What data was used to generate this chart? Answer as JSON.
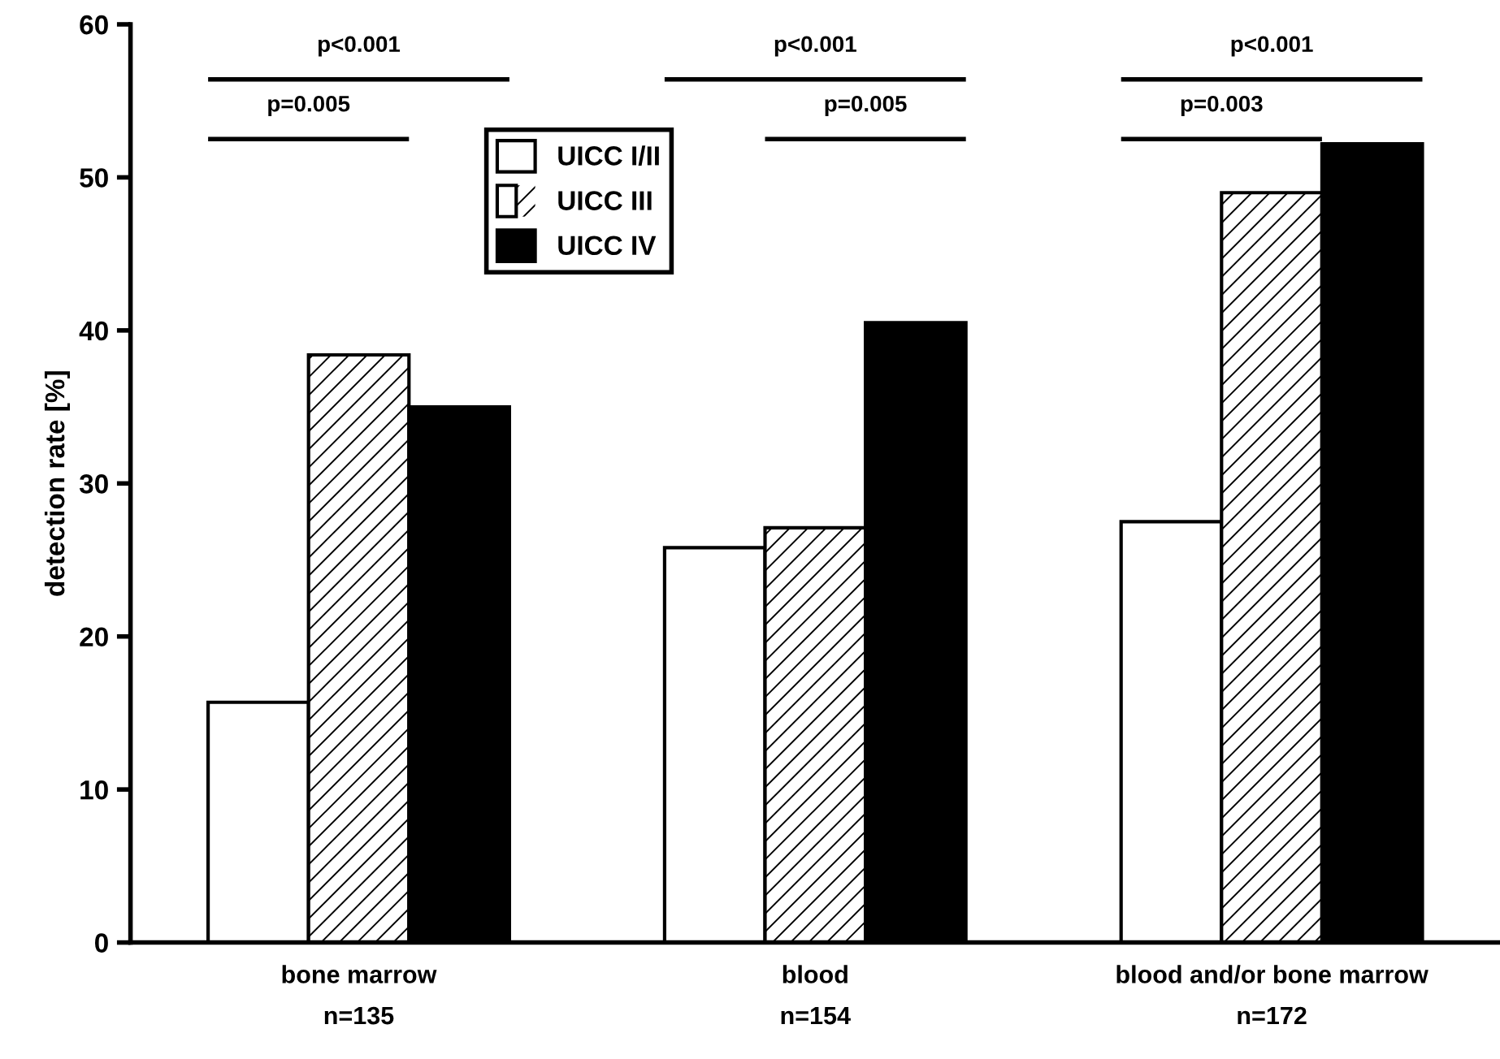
{
  "chart_data": {
    "type": "bar",
    "ylabel": "detection rate [%]",
    "categories": [
      "bone marrow\nn=135",
      "blood\nn=154",
      "blood and/or bone marrow\nn=172"
    ],
    "series": [
      {
        "name": "UICC I/II",
        "color": "#ffffff",
        "values": [
          15.7,
          25.8,
          27.5
        ]
      },
      {
        "name": "UICC III",
        "color": "#ffffff",
        "values": [
          38.4,
          27.1,
          49.0
        ]
      },
      {
        "name": "UICC IV",
        "color": "#000000",
        "values": [
          35.0,
          40.5,
          52.2
        ]
      }
    ],
    "ylim": [
      0,
      60
    ],
    "yticks": [
      0,
      10,
      20,
      30,
      40,
      50,
      60
    ],
    "annotations": [
      "p<0.001",
      "p=0.005",
      "p<0.001",
      "p=0.005",
      "p<0.001",
      "p=0.003"
    ],
    "grid": false,
    "legend": "top"
  }
}
